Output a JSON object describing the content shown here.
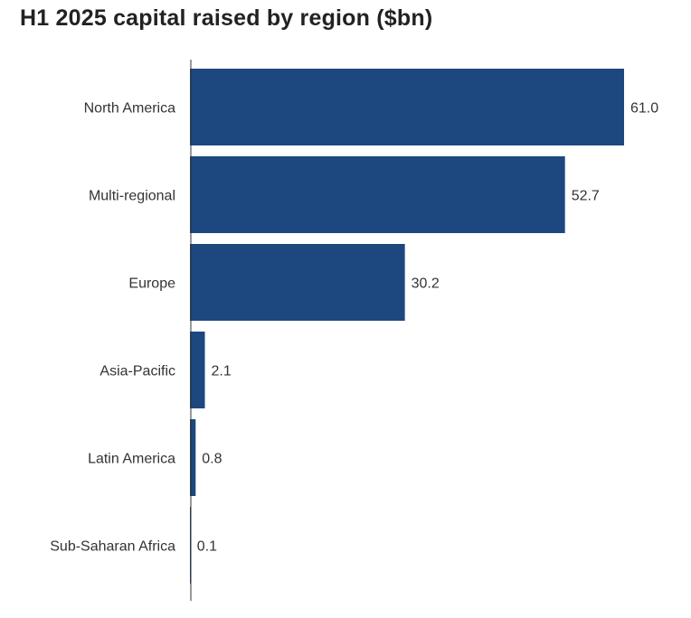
{
  "chart_data": {
    "type": "bar",
    "orientation": "horizontal",
    "title": "H1 2025 capital raised by region ($bn)",
    "categories": [
      "North America",
      "Multi-regional",
      "Europe",
      "Asia-Pacific",
      "Latin America",
      "Sub-Saharan Africa"
    ],
    "values": [
      61.0,
      52.7,
      30.2,
      2.1,
      0.8,
      0.1
    ],
    "value_labels": [
      "61.0",
      "52.7",
      "30.2",
      "2.1",
      "0.8",
      "0.1"
    ],
    "xlabel": "",
    "ylabel": "",
    "xlim": [
      0,
      61
    ],
    "grid": false,
    "bar_color": "#1d477f"
  }
}
